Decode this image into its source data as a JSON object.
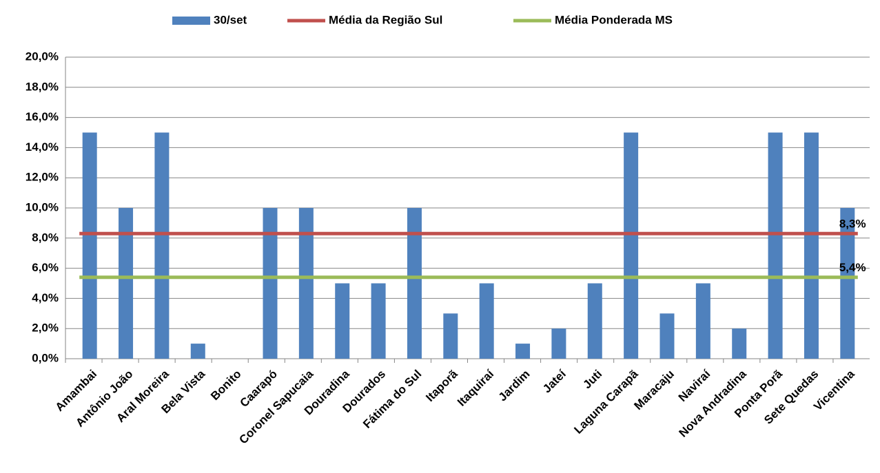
{
  "chart_data": {
    "type": "bar",
    "categories": [
      "Amambai",
      "Antônio João",
      "Aral Moreira",
      "Bela Vista",
      "Bonito",
      "Caarapó",
      "Coronel Sapucaia",
      "Douradina",
      "Dourados",
      "Fátima do Sul",
      "Itaporã",
      "Itaquiraí",
      "Jardim",
      "Jateí",
      "Juti",
      "Laguna Carapã",
      "Maracaju",
      "Naviraí",
      "Nova Andradina",
      "Ponta Porã",
      "Sete Quedas",
      "Vicentina"
    ],
    "series": [
      {
        "name": "30/set",
        "type": "bar",
        "color": "#4f81bd",
        "values": [
          15,
          10,
          15,
          1,
          0,
          10,
          10,
          5,
          5,
          10,
          3,
          5,
          1,
          2,
          5,
          15,
          3,
          5,
          2,
          15,
          15,
          10
        ]
      },
      {
        "name": "Média da Região Sul",
        "type": "line",
        "color": "#c0504d",
        "values": [
          8.3,
          8.3,
          8.3,
          8.3,
          8.3,
          8.3,
          8.3,
          8.3,
          8.3,
          8.3,
          8.3,
          8.3,
          8.3,
          8.3,
          8.3,
          8.3,
          8.3,
          8.3,
          8.3,
          8.3,
          8.3,
          8.3
        ],
        "value_labels": [
          null,
          null,
          null,
          null,
          null,
          null,
          null,
          null,
          null,
          null,
          null,
          null,
          null,
          null,
          null,
          null,
          null,
          null,
          null,
          null,
          null,
          "8,3%"
        ]
      },
      {
        "name": "Média Ponderada MS",
        "type": "line",
        "color": "#9bbb59",
        "values": [
          5.4,
          5.4,
          5.4,
          5.4,
          5.4,
          5.4,
          5.4,
          5.4,
          5.4,
          5.4,
          5.4,
          5.4,
          5.4,
          5.4,
          5.4,
          5.4,
          5.4,
          5.4,
          5.4,
          5.4,
          5.4,
          5.4
        ],
        "value_labels": [
          null,
          null,
          null,
          null,
          null,
          null,
          null,
          null,
          null,
          null,
          null,
          null,
          null,
          null,
          null,
          null,
          null,
          null,
          null,
          null,
          null,
          "5,4%"
        ]
      }
    ],
    "ylim": [
      0,
      20
    ],
    "yticks": [
      {
        "value": 0,
        "label": "0,0%"
      },
      {
        "value": 2,
        "label": "2,0%"
      },
      {
        "value": 4,
        "label": "4,0%"
      },
      {
        "value": 6,
        "label": "6,0%"
      },
      {
        "value": 8,
        "label": "8,0%"
      },
      {
        "value": 10,
        "label": "10,0%"
      },
      {
        "value": 12,
        "label": "12,0%"
      },
      {
        "value": 14,
        "label": "14,0%"
      },
      {
        "value": 16,
        "label": "16,0%"
      },
      {
        "value": 18,
        "label": "18,0%"
      },
      {
        "value": 20,
        "label": "20,0%"
      }
    ],
    "grid": true,
    "legend": "top"
  }
}
